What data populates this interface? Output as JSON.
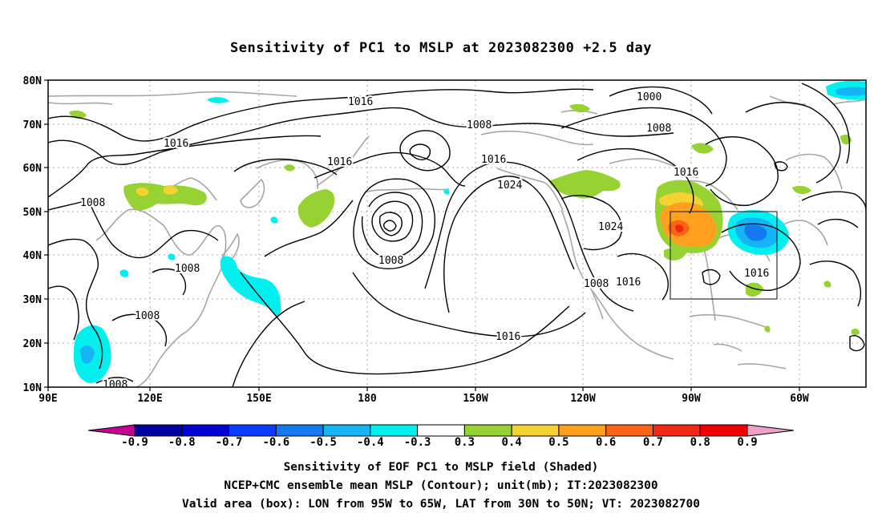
{
  "title": "Sensitivity of PC1 to MSLP at 2023082300 +2.5 day",
  "axes": {
    "lat_labels": [
      "80N",
      "70N",
      "60N",
      "50N",
      "40N",
      "30N",
      "20N",
      "10N"
    ],
    "lon_labels": [
      "90E",
      "120E",
      "150E",
      "180",
      "150W",
      "120W",
      "90W",
      "60W"
    ]
  },
  "contours": {
    "labels": [
      {
        "text": "1016"
      },
      {
        "text": "1000"
      },
      {
        "text": "1008"
      },
      {
        "text": "1016"
      },
      {
        "text": "1008"
      },
      {
        "text": "1016"
      },
      {
        "text": "1016"
      },
      {
        "text": "1024"
      },
      {
        "text": "1016"
      },
      {
        "text": "1008"
      },
      {
        "text": "1008"
      },
      {
        "text": "1024"
      },
      {
        "text": "1008"
      },
      {
        "text": "1008"
      },
      {
        "text": "1016"
      },
      {
        "text": "1016"
      },
      {
        "text": "1008"
      },
      {
        "text": "1016"
      },
      {
        "text": "1008"
      }
    ]
  },
  "valid_box": {
    "lon_from": "95W",
    "lon_to": "65W",
    "lat_from": "30N",
    "lat_to": "50N"
  },
  "colorbar": {
    "labels": [
      "-0.9",
      "-0.8",
      "-0.7",
      "-0.6",
      "-0.5",
      "-0.4",
      "-0.3",
      "0.3",
      "0.4",
      "0.5",
      "0.6",
      "0.7",
      "0.8",
      "0.9"
    ],
    "colors": [
      "#0000a0",
      "#0000d2",
      "#0a3cff",
      "#1478f0",
      "#14b4f5",
      "#00f0f0",
      "#ffffff",
      "#96d232",
      "#f5d232",
      "#ffa01e",
      "#fa6414",
      "#f02814",
      "#f00000"
    ],
    "under_color": "#c80096",
    "over_color": "#f0a0c8"
  },
  "captions": {
    "line1": "Sensitivity of EOF PC1 to MSLP field (Shaded)",
    "line2": "NCEP+CMC ensemble mean MSLP (Contour); unit(mb); IT:2023082300",
    "line3": "Valid area (box): LON from 95W to 65W, LAT from 30N to 50N; VT: 2023082700"
  }
}
